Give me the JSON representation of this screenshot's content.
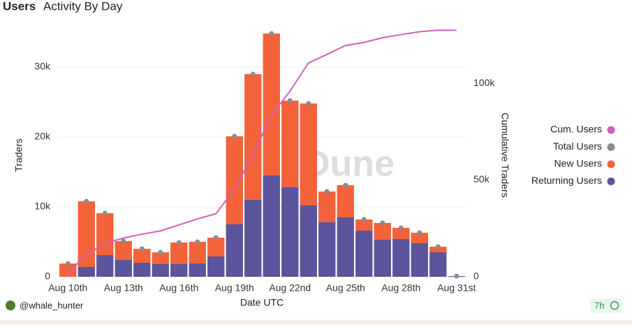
{
  "header": {
    "title": "Users",
    "subtitle": "Activity By Day"
  },
  "chart_data": {
    "type": "bar",
    "stacked": true,
    "categories": [
      "Aug 10th",
      null,
      null,
      "Aug 13th",
      null,
      null,
      "Aug 16th",
      null,
      null,
      "Aug 19th",
      null,
      null,
      "Aug 22nd",
      null,
      null,
      "Aug 25th",
      null,
      null,
      "Aug 28th",
      null,
      null,
      "Aug 31st"
    ],
    "x_label": "Date UTC",
    "y_label": "Traders",
    "y2_label": "Cumulative Traders",
    "ylim": [
      0,
      36000
    ],
    "yticks": [
      0,
      {
        "value": 10000,
        "label": "10k"
      },
      {
        "value": 20000,
        "label": "20k"
      },
      {
        "value": 30000,
        "label": "30k"
      }
    ],
    "y2lim": [
      0,
      130000
    ],
    "y2ticks": [
      0,
      {
        "value": 50000,
        "label": "50k"
      },
      {
        "value": 100000,
        "label": "100k"
      }
    ],
    "grid": true,
    "legend": "right",
    "watermark": "Dune",
    "series": [
      {
        "name": "Cum. Users",
        "type": "line",
        "axis": "y2",
        "color": "#d160b8",
        "values": [
          1900,
          11300,
          17300,
          20000,
          22000,
          23700,
          26800,
          29900,
          32600,
          45200,
          63200,
          83500,
          95900,
          110500,
          114900,
          119500,
          121100,
          123500,
          125100,
          126600,
          127400,
          127400
        ]
      },
      {
        "name": "Total Users",
        "type": "scatter",
        "color": "#8c8c8c",
        "values": [
          1900,
          10800,
          9100,
          5100,
          4000,
          3500,
          4900,
          5000,
          5600,
          20100,
          29000,
          34800,
          25200,
          24800,
          12200,
          13100,
          8200,
          7700,
          7000,
          6300,
          4300,
          100
        ]
      },
      {
        "name": "New Users",
        "type": "bar",
        "color": "#f4623a",
        "values": [
          1900,
          9400,
          6000,
          2700,
          2000,
          1700,
          3100,
          3100,
          2700,
          12600,
          18000,
          20300,
          12400,
          14600,
          4400,
          4600,
          1600,
          2400,
          1600,
          1500,
          800,
          0
        ]
      },
      {
        "name": "Returning Users",
        "type": "bar",
        "color": "#5a559c",
        "values": [
          0,
          1400,
          3100,
          2400,
          2000,
          1800,
          1800,
          1900,
          2900,
          7500,
          11000,
          14500,
          12800,
          10200,
          7800,
          8500,
          6600,
          5300,
          5400,
          4800,
          3500,
          100
        ]
      }
    ]
  },
  "footer": {
    "user": "@whale_hunter",
    "age": "7h"
  }
}
